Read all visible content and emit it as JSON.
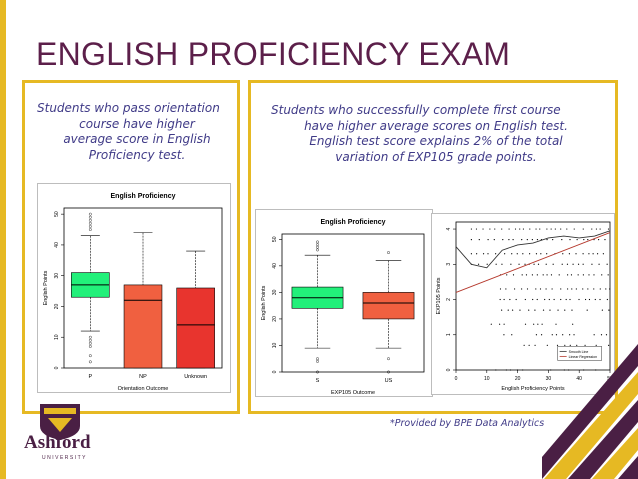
{
  "slide": {
    "title": "ENGLISH PROFICIENCY EXAM",
    "footnote": "*Provided by BPE Data Analytics",
    "logo_name": "Ashford",
    "logo_sub": "UNIVERSITY"
  },
  "left_panel": {
    "caption_lines": [
      "Students who pass orientation",
      "course have higher",
      "average score in English",
      "Proficiency test."
    ]
  },
  "right_panel": {
    "caption_lines": [
      "Students who successfully complete first course",
      "have higher average scores on English test.",
      "English test score explains 2% of the total",
      "variation of EXP105 grade points."
    ]
  },
  "colors": {
    "title": "#5c1f4a",
    "accent": "#e6b923",
    "caption": "#3f3a87",
    "pass_box": "#22f07a",
    "np_box": "#f06040",
    "unknown_box": "#e8342e"
  },
  "chart_data": [
    {
      "type": "boxplot",
      "title": "English Proficiency",
      "xlabel": "Orientation Outcome",
      "ylabel": "English Points",
      "categories": [
        "P",
        "NP",
        "Unknown"
      ],
      "yticks": [
        0,
        10,
        20,
        30,
        40,
        50
      ],
      "ylim": [
        0,
        52
      ],
      "boxes": [
        {
          "name": "P",
          "q1": 23,
          "median": 27,
          "q3": 31,
          "whisker_low": 12,
          "whisker_high": 43,
          "color": "#22f07a",
          "outliers": [
            2,
            4,
            7,
            8,
            9,
            10,
            45,
            46,
            47,
            48,
            49,
            50
          ]
        },
        {
          "name": "NP",
          "q1": 0,
          "median": 22,
          "q3": 27,
          "whisker_low": 0,
          "whisker_high": 44,
          "color": "#f06040",
          "outliers": []
        },
        {
          "name": "Unknown",
          "q1": 0,
          "median": 14,
          "q3": 26,
          "whisker_low": 0,
          "whisker_high": 38,
          "color": "#e8342e",
          "outliers": []
        }
      ]
    },
    {
      "type": "boxplot",
      "title": "English Proficiency",
      "xlabel": "EXP105 Outcome",
      "ylabel": "English Points",
      "categories": [
        "S",
        "US"
      ],
      "yticks": [
        0,
        10,
        20,
        30,
        40,
        50
      ],
      "ylim": [
        0,
        52
      ],
      "boxes": [
        {
          "name": "S",
          "q1": 24,
          "median": 28,
          "q3": 32,
          "whisker_low": 9,
          "whisker_high": 44,
          "color": "#22f07a",
          "outliers": [
            0,
            4,
            5,
            46,
            47,
            48,
            49
          ]
        },
        {
          "name": "US",
          "q1": 20,
          "median": 26,
          "q3": 30,
          "whisker_low": 9,
          "whisker_high": 42,
          "color": "#f06040",
          "outliers": [
            0,
            5,
            45
          ]
        }
      ]
    },
    {
      "type": "scatter",
      "xlabel": "English Proficiency Points",
      "ylabel": "EXP105 Points",
      "xticks": [
        0,
        10,
        20,
        30,
        40,
        50
      ],
      "yticks": [
        0,
        1,
        2,
        3,
        4
      ],
      "xlim": [
        0,
        50
      ],
      "ylim": [
        0,
        4.2
      ],
      "legend": [
        "Smooth Line",
        "Linear Regression"
      ],
      "legend_position": "bottom-right",
      "linear_regression": {
        "x": [
          0,
          50
        ],
        "y": [
          2.2,
          3.9
        ]
      },
      "smooth_line": {
        "x": [
          0,
          5,
          10,
          15,
          20,
          25,
          30,
          35,
          40,
          45,
          50
        ],
        "y": [
          3.5,
          3.0,
          2.9,
          3.4,
          3.55,
          3.6,
          3.75,
          3.8,
          3.75,
          3.8,
          3.95
        ]
      }
    }
  ]
}
